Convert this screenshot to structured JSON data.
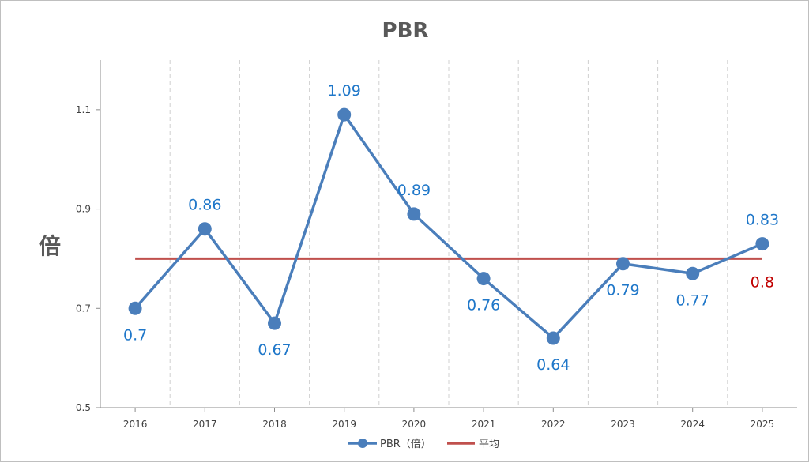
{
  "chart_data": {
    "type": "line",
    "title": "PBR",
    "ylabel": "倍",
    "xlabel": "",
    "categories": [
      "2016",
      "2017",
      "2018",
      "2019",
      "2020",
      "2021",
      "2022",
      "2023",
      "2024",
      "2025"
    ],
    "series": [
      {
        "name": "PBR（倍）",
        "values": [
          0.7,
          0.86,
          0.67,
          1.09,
          0.89,
          0.76,
          0.64,
          0.79,
          0.77,
          0.83
        ],
        "labels": [
          "0.7",
          "0.86",
          "0.67",
          "1.09",
          "0.89",
          "0.76",
          "0.64",
          "0.79",
          "0.77",
          "0.83"
        ],
        "label_positions": [
          "below",
          "above",
          "below",
          "above",
          "above",
          "below",
          "below",
          "below",
          "below",
          "above"
        ],
        "color": "#4a7ebb"
      },
      {
        "name": "平均",
        "values": [
          0.8,
          0.8,
          0.8,
          0.8,
          0.8,
          0.8,
          0.8,
          0.8,
          0.8,
          0.8
        ],
        "end_label": "0.8",
        "color": "#c0504d"
      }
    ],
    "ylim": [
      0.5,
      1.2
    ],
    "yticks": [
      0.5,
      0.7,
      0.9,
      1.1
    ],
    "ytick_labels": [
      "0.5",
      "0.7",
      "0.9",
      "1.1"
    ],
    "grid": "vertical-dashed",
    "legend": "bottom"
  }
}
